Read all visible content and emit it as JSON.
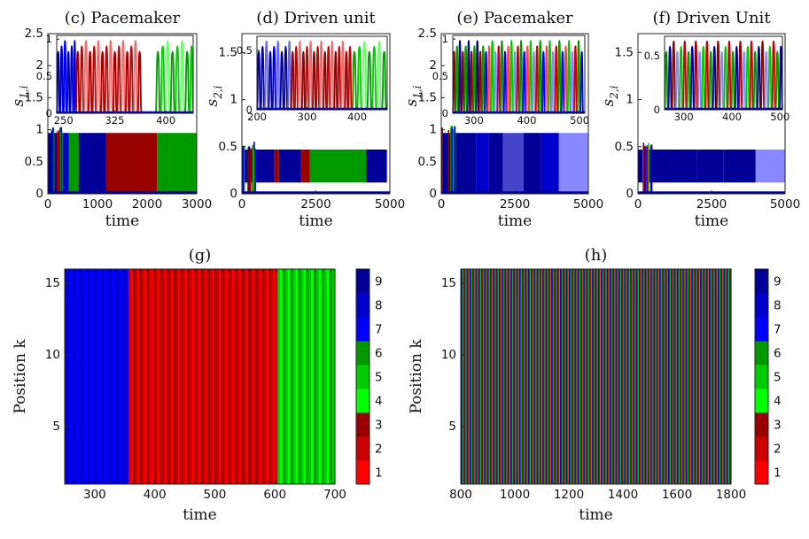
{
  "figure": {
    "colormap": [
      "#ff0000",
      "#cc0000",
      "#990000",
      "#00ff00",
      "#00cc00",
      "#009900",
      "#0000ff",
      "#0000cc",
      "#000099"
    ],
    "colorbar_ticks": [
      1,
      2,
      3,
      4,
      5,
      6,
      7,
      8,
      9
    ]
  },
  "chart_data": [
    {
      "id": "c",
      "type": "line",
      "title": "(c) Pacemaker",
      "xlabel": "time",
      "ylabel": "s_{1,i}",
      "xlim": [
        0,
        3000
      ],
      "ylim": [
        0,
        2.5
      ],
      "xticks": [
        0,
        1000,
        2000,
        3000
      ],
      "yticks": [
        0,
        0.5,
        1,
        1.5,
        2,
        2.5
      ],
      "bands": [
        {
          "x0": 0,
          "x1": 180,
          "color": "#000099"
        },
        {
          "x0": 180,
          "x1": 300,
          "color": "#009900"
        },
        {
          "x0": 300,
          "x1": 420,
          "color": "#0000cc"
        },
        {
          "x0": 420,
          "x1": 620,
          "color": "#009900"
        },
        {
          "x0": 620,
          "x1": 1170,
          "color": "#000099"
        },
        {
          "x0": 1170,
          "x1": 2200,
          "color": "#990000"
        },
        {
          "x0": 2200,
          "x1": 3000,
          "color": "#009900"
        }
      ],
      "band_range": [
        0,
        0.95
      ],
      "inset": {
        "xlim": [
          240,
          440
        ],
        "ylim": [
          0,
          1.05
        ],
        "xticks": [
          250,
          325,
          400
        ],
        "yticks": [
          0,
          0.5,
          1
        ],
        "segments": [
          {
            "x0": 240,
            "x1": 268,
            "period": 9,
            "colors": [
              "#000099",
              "#0000cc",
              "#0000ff"
            ]
          },
          {
            "x0": 268,
            "x1": 368,
            "period": 11,
            "colors": [
              "#990000",
              "#cc0000",
              "#ff6666"
            ]
          },
          {
            "x0": 385,
            "x1": 440,
            "period": 13,
            "colors": [
              "#009900",
              "#00cc00",
              "#66ff66"
            ]
          }
        ]
      }
    },
    {
      "id": "d",
      "type": "line",
      "title": "(d) Driven unit",
      "xlabel": "time",
      "ylabel": "s_{2,i}",
      "xlim": [
        0,
        5000
      ],
      "ylim": [
        0,
        1.7
      ],
      "xticks": [
        0,
        2500,
        5000
      ],
      "yticks": [
        0,
        0.5,
        1,
        1.5
      ],
      "bands": [
        {
          "x0": 0,
          "x1": 300,
          "color": "#000099"
        },
        {
          "x0": 300,
          "x1": 1100,
          "color": "#000099"
        },
        {
          "x0": 1100,
          "x1": 1250,
          "color": "#990000"
        },
        {
          "x0": 1250,
          "x1": 2000,
          "color": "#000099"
        },
        {
          "x0": 2000,
          "x1": 2300,
          "color": "#990000"
        },
        {
          "x0": 2300,
          "x1": 4200,
          "color": "#009900"
        },
        {
          "x0": 4200,
          "x1": 4900,
          "color": "#000099"
        }
      ],
      "band_range": [
        0.12,
        0.47
      ],
      "inset": {
        "xlim": [
          200,
          460
        ],
        "ylim": [
          0,
          0.62
        ],
        "xticks": [
          200,
          300,
          400
        ],
        "yticks": [
          0,
          0.5
        ],
        "segments": [
          {
            "x0": 200,
            "x1": 268,
            "period": 14,
            "colors": [
              "#000099",
              "#0000cc",
              "#6666ff"
            ]
          },
          {
            "x0": 268,
            "x1": 390,
            "period": 13,
            "colors": [
              "#990000",
              "#cc0000",
              "#ff6666"
            ]
          },
          {
            "x0": 390,
            "x1": 460,
            "period": 18,
            "colors": [
              "#009900",
              "#00cc00",
              "#66ff66"
            ]
          }
        ]
      }
    },
    {
      "id": "e",
      "type": "line",
      "title": "(e) Pacemaker",
      "xlabel": "time",
      "ylabel": "s_{1,i}",
      "xlim": [
        0,
        5000
      ],
      "ylim": [
        0,
        2.5
      ],
      "xticks": [
        0,
        2500,
        5000
      ],
      "yticks": [
        0,
        0.5,
        1,
        1.5,
        2,
        2.5
      ],
      "bands": [
        {
          "x0": 0,
          "x1": 1200,
          "color": "#000099"
        },
        {
          "x0": 1200,
          "x1": 1600,
          "color": "#0000cc"
        },
        {
          "x0": 1600,
          "x1": 2100,
          "color": "#000099"
        },
        {
          "x0": 2100,
          "x1": 2800,
          "color": "#4444cc"
        },
        {
          "x0": 2800,
          "x1": 3400,
          "color": "#000099"
        },
        {
          "x0": 3400,
          "x1": 4000,
          "color": "#0000cc"
        },
        {
          "x0": 4000,
          "x1": 5000,
          "color": "#8888ff"
        }
      ],
      "band_range": [
        0,
        0.95
      ],
      "inset": {
        "xlim": [
          260,
          510
        ],
        "ylim": [
          0,
          1.05
        ],
        "xticks": [
          300,
          400,
          500
        ],
        "yticks": [
          0,
          0.5,
          1
        ],
        "segments": [
          {
            "x0": 260,
            "x1": 320,
            "period": 10,
            "colors": [
              "#990000",
              "#009900",
              "#000099"
            ]
          },
          {
            "x0": 320,
            "x1": 510,
            "period": 11,
            "colors": [
              "#0000ff",
              "#ff4444",
              "#00cc00",
              "#8888ff",
              "#cc0000",
              "#009900"
            ]
          }
        ]
      }
    },
    {
      "id": "f",
      "type": "line",
      "title": "(f) Driven Unit",
      "xlabel": "time",
      "ylabel": "s_{2,i}",
      "xlim": [
        0,
        5000
      ],
      "ylim": [
        0,
        1.7
      ],
      "xticks": [
        0,
        2500,
        5000
      ],
      "yticks": [
        0,
        0.5,
        1,
        1.5
      ],
      "bands": [
        {
          "x0": 0,
          "x1": 1100,
          "color": "#000099"
        },
        {
          "x0": 1100,
          "x1": 2000,
          "color": "#000099"
        },
        {
          "x0": 2000,
          "x1": 2900,
          "color": "#000099"
        },
        {
          "x0": 2900,
          "x1": 4000,
          "color": "#000099"
        },
        {
          "x0": 4000,
          "x1": 5000,
          "color": "#8888ff"
        }
      ],
      "band_range": [
        0.12,
        0.47
      ],
      "inset": {
        "xlim": [
          260,
          505
        ],
        "ylim": [
          0,
          0.68
        ],
        "xticks": [
          300,
          400,
          500
        ],
        "yticks": [
          0,
          0.5
        ],
        "segments": [
          {
            "x0": 260,
            "x1": 505,
            "period": 14,
            "colors": [
              "#009900",
              "#000099",
              "#990000",
              "#8888ff",
              "#00cc00",
              "#cc0000"
            ]
          }
        ]
      }
    },
    {
      "id": "g",
      "type": "heatmap",
      "title": "(g)",
      "xlabel": "time",
      "ylabel": "Position k",
      "xlim": [
        250,
        700
      ],
      "ylim": [
        1,
        16
      ],
      "xticks": [
        300,
        400,
        500,
        600,
        700
      ],
      "yticks": [
        5,
        10,
        15
      ],
      "columns": [
        {
          "x0": 250,
          "x1": 356,
          "period": 12,
          "levels": [
            8,
            7
          ]
        },
        {
          "x0": 356,
          "x1": 604,
          "period": 11.3,
          "levels": [
            2,
            1,
            3
          ]
        },
        {
          "x0": 604,
          "x1": 700,
          "period": 13,
          "levels": [
            5,
            4,
            6
          ]
        }
      ]
    },
    {
      "id": "h",
      "type": "heatmap",
      "title": "(h)",
      "xlabel": "time",
      "ylabel": "Position k",
      "xlim": [
        800,
        1800
      ],
      "ylim": [
        1,
        16
      ],
      "xticks": [
        800,
        1000,
        1200,
        1400,
        1600,
        1800
      ],
      "yticks": [
        5,
        10,
        15
      ],
      "columns": [
        {
          "x0": 800,
          "x1": 1800,
          "period": 10.8,
          "levels": [
            8,
            2,
            5
          ]
        }
      ]
    }
  ]
}
